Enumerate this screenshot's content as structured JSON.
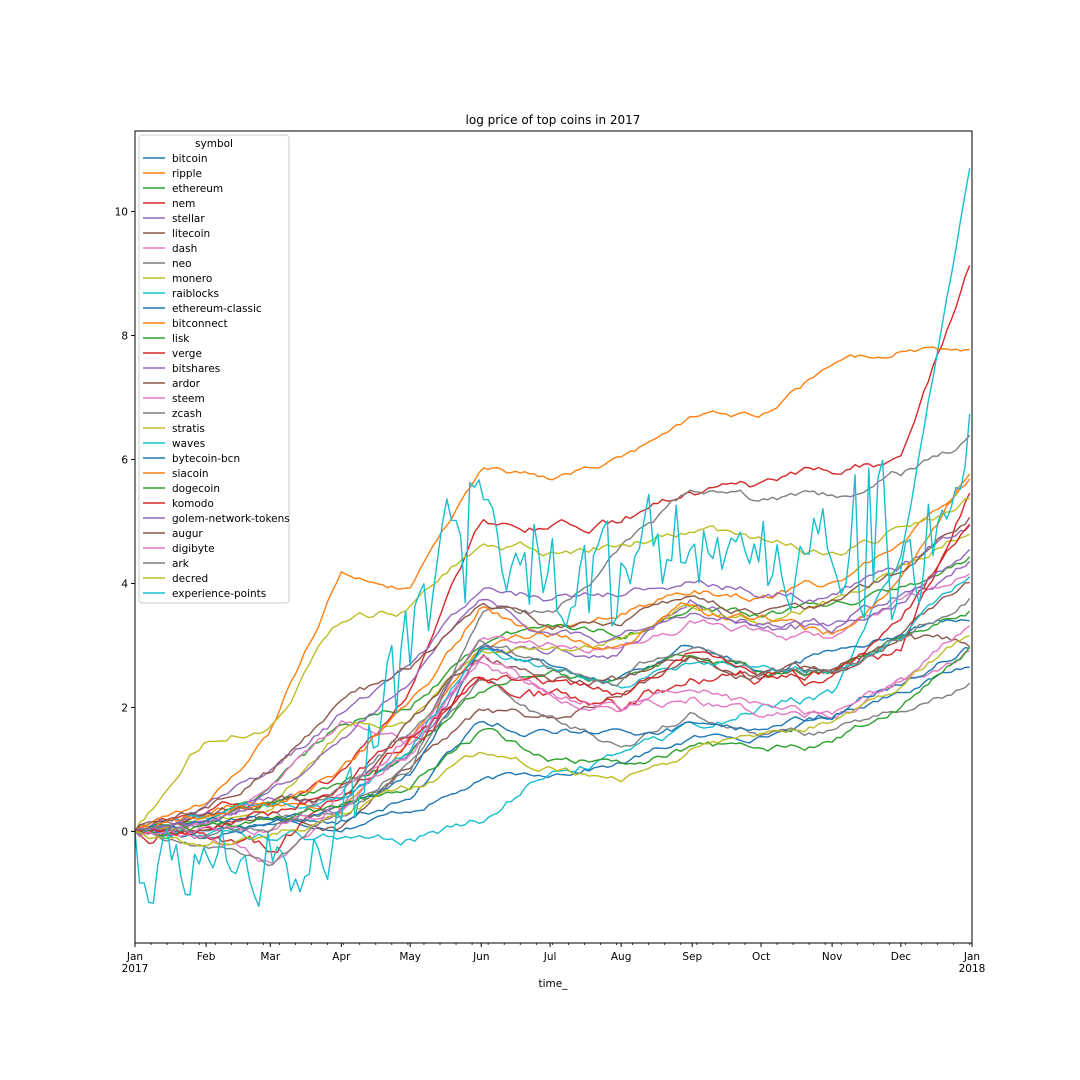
{
  "chart_data": {
    "type": "line",
    "title": "log price of top coins in 2017",
    "xlabel": "time_",
    "ylabel": "",
    "x_range": [
      "2017-01-01",
      "2018-01-01"
    ],
    "x_ticks": [
      {
        "date": "2017-01-01",
        "label": "Jan",
        "label2": "2017"
      },
      {
        "date": "2017-02-01",
        "label": "Feb"
      },
      {
        "date": "2017-03-01",
        "label": "Mar"
      },
      {
        "date": "2017-04-01",
        "label": "Apr"
      },
      {
        "date": "2017-05-01",
        "label": "May"
      },
      {
        "date": "2017-06-01",
        "label": "Jun"
      },
      {
        "date": "2017-07-01",
        "label": "Jul"
      },
      {
        "date": "2017-08-01",
        "label": "Aug"
      },
      {
        "date": "2017-09-01",
        "label": "Sep"
      },
      {
        "date": "2017-10-01",
        "label": "Oct"
      },
      {
        "date": "2017-11-01",
        "label": "Nov"
      },
      {
        "date": "2017-12-01",
        "label": "Dec"
      },
      {
        "date": "2018-01-01",
        "label": "Jan",
        "label2": "2018"
      }
    ],
    "ylim": [
      -1.8,
      11.3
    ],
    "y_ticks": [
      0,
      2,
      4,
      6,
      8,
      10
    ],
    "grid": false,
    "legend": {
      "title": "symbol",
      "placement": "upper-left"
    },
    "sample_dates": [
      "2017-01-01",
      "2017-02-01",
      "2017-03-01",
      "2017-04-01",
      "2017-05-01",
      "2017-06-01",
      "2017-07-01",
      "2017-08-01",
      "2017-09-01",
      "2017-10-01",
      "2017-11-01",
      "2017-12-01",
      "2018-01-01"
    ],
    "series": [
      {
        "name": "bitcoin",
        "color": "#1f77b4",
        "volatility": 0.04,
        "values": [
          0,
          0.05,
          0.15,
          0.1,
          0.35,
          0.8,
          0.95,
          1.1,
          1.5,
          1.55,
          1.85,
          2.3,
          2.7
        ]
      },
      {
        "name": "ripple",
        "color": "#ff7f0e",
        "volatility": 0.05,
        "values": [
          0,
          0.3,
          0.55,
          0.4,
          1.5,
          3.0,
          3.2,
          3.6,
          3.9,
          3.8,
          4.0,
          4.5,
          5.8
        ]
      },
      {
        "name": "ethereum",
        "color": "#2ca02c",
        "volatility": 0.05,
        "values": [
          0,
          0.15,
          0.7,
          1.8,
          2.0,
          3.1,
          3.3,
          3.25,
          3.6,
          3.5,
          3.6,
          3.9,
          4.4
        ]
      },
      {
        "name": "nem",
        "color": "#d62728",
        "volatility": 0.06,
        "values": [
          0,
          0.3,
          0.5,
          0.9,
          2.3,
          5.0,
          4.9,
          5.0,
          5.5,
          5.5,
          5.8,
          6.0,
          9.2
        ]
      },
      {
        "name": "stellar",
        "color": "#9467bd",
        "volatility": 0.07,
        "values": [
          0,
          0.3,
          0.6,
          0.4,
          1.3,
          2.9,
          2.9,
          3.0,
          3.8,
          3.3,
          3.3,
          3.9,
          4.4
        ]
      },
      {
        "name": "litecoin",
        "color": "#8c564b",
        "volatility": 0.05,
        "values": [
          0,
          0.05,
          0.2,
          0.1,
          1.0,
          1.9,
          1.8,
          2.2,
          2.9,
          2.5,
          2.5,
          3.2,
          4.0
        ]
      },
      {
        "name": "dash",
        "color": "#e377c2",
        "volatility": 0.05,
        "values": [
          0,
          0.1,
          0.7,
          1.8,
          1.4,
          3.1,
          3.0,
          3.0,
          3.4,
          3.2,
          3.1,
          3.7,
          4.2
        ]
      },
      {
        "name": "neo",
        "color": "#7f7f7f",
        "volatility": 0.06,
        "values": [
          0,
          0.1,
          0.2,
          0.2,
          1.0,
          3.6,
          3.5,
          4.5,
          5.5,
          5.3,
          5.3,
          5.7,
          6.3
        ]
      },
      {
        "name": "monero",
        "color": "#bcbd22",
        "volatility": 0.05,
        "values": [
          0,
          0.2,
          0.4,
          1.6,
          1.8,
          3.0,
          2.9,
          3.1,
          3.6,
          3.4,
          3.7,
          4.3,
          4.9
        ]
      },
      {
        "name": "raiblocks",
        "color": "#17becf",
        "volatility": 0.06,
        "values": [
          0,
          -0.1,
          -0.1,
          -0.1,
          -0.1,
          0.2,
          1.0,
          1.2,
          1.6,
          2.0,
          2.2,
          4.5,
          10.8
        ]
      },
      {
        "name": "ethereum-classic",
        "color": "#1f77b4",
        "volatility": 0.05,
        "values": [
          0,
          -0.1,
          0.1,
          0.3,
          0.9,
          2.9,
          2.6,
          2.5,
          3.0,
          2.6,
          2.9,
          3.2,
          3.5
        ]
      },
      {
        "name": "bitconnect",
        "color": "#ff7f0e",
        "volatility": 0.04,
        "values": [
          0,
          0.4,
          1.6,
          4.2,
          3.9,
          5.8,
          5.7,
          6.0,
          6.7,
          6.7,
          7.5,
          7.8,
          7.8
        ]
      },
      {
        "name": "lisk",
        "color": "#2ca02c",
        "volatility": 0.05,
        "values": [
          0,
          0.2,
          0.5,
          0.7,
          1.2,
          2.3,
          2.5,
          2.4,
          2.9,
          2.5,
          2.6,
          3.2,
          3.6
        ]
      },
      {
        "name": "verge",
        "color": "#d62728",
        "volatility": 0.09,
        "values": [
          0,
          -0.05,
          -0.25,
          0.5,
          1.4,
          2.4,
          2.2,
          2.1,
          2.5,
          2.5,
          2.4,
          3.0,
          5.7
        ]
      },
      {
        "name": "bitshares",
        "color": "#9467bd",
        "volatility": 0.06,
        "values": [
          0,
          0.4,
          1.0,
          1.9,
          2.6,
          4.0,
          3.8,
          3.9,
          4.1,
          3.9,
          3.8,
          4.2,
          5.0
        ]
      },
      {
        "name": "ardor",
        "color": "#8c564b",
        "volatility": 0.06,
        "values": [
          0,
          0.2,
          0.5,
          0.6,
          1.8,
          2.9,
          2.4,
          2.4,
          2.8,
          2.5,
          2.6,
          3.1,
          3.0
        ]
      },
      {
        "name": "steem",
        "color": "#e377c2",
        "volatility": 0.06,
        "values": [
          0,
          -0.1,
          -0.5,
          0.6,
          1.5,
          2.7,
          2.3,
          2.0,
          2.3,
          2.0,
          1.9,
          2.4,
          2.9
        ]
      },
      {
        "name": "zcash",
        "color": "#7f7f7f",
        "volatility": 0.05,
        "values": [
          0,
          -0.3,
          -0.5,
          0.4,
          1.2,
          2.4,
          1.8,
          1.4,
          1.9,
          1.5,
          1.6,
          1.9,
          2.4
        ]
      },
      {
        "name": "stratis",
        "color": "#bcbd22",
        "volatility": 0.06,
        "values": [
          0,
          1.5,
          1.8,
          3.4,
          3.6,
          4.6,
          4.5,
          4.6,
          4.9,
          4.6,
          4.5,
          4.9,
          5.4
        ]
      },
      {
        "name": "waves",
        "color": "#17becf",
        "volatility": 0.05,
        "values": [
          0,
          0.2,
          0.4,
          0.6,
          1.3,
          2.9,
          2.6,
          2.4,
          2.8,
          2.6,
          2.6,
          3.2,
          4.1
        ]
      },
      {
        "name": "bytecoin-bcn",
        "color": "#1f77b4",
        "volatility": 0.05,
        "values": [
          0,
          0.1,
          0.2,
          0.2,
          0.6,
          1.8,
          1.6,
          1.6,
          1.7,
          1.7,
          1.9,
          2.4,
          3.0
        ]
      },
      {
        "name": "siacoin",
        "color": "#ff7f0e",
        "volatility": 0.06,
        "values": [
          0,
          0.2,
          0.4,
          1.0,
          2.0,
          3.6,
          3.2,
          3.0,
          3.6,
          3.4,
          3.2,
          4.0,
          5.8
        ]
      },
      {
        "name": "dogecoin",
        "color": "#2ca02c",
        "volatility": 0.05,
        "values": [
          0,
          0.1,
          0.2,
          0.4,
          0.8,
          1.6,
          1.2,
          1.1,
          1.4,
          1.3,
          1.4,
          2.0,
          3.0
        ]
      },
      {
        "name": "komodo",
        "color": "#d62728",
        "volatility": 0.06,
        "values": [
          0,
          0.1,
          0.3,
          0.8,
          1.6,
          2.5,
          2.4,
          2.2,
          2.9,
          2.5,
          2.6,
          3.3,
          5.1
        ]
      },
      {
        "name": "golem-network-tokens",
        "color": "#9467bd",
        "volatility": 0.05,
        "values": [
          0,
          0.1,
          0.6,
          1.5,
          2.4,
          3.8,
          3.2,
          3.1,
          3.5,
          3.3,
          3.3,
          3.7,
          4.6
        ]
      },
      {
        "name": "augur",
        "color": "#8c564b",
        "volatility": 0.05,
        "values": [
          0,
          0.4,
          1.0,
          2.0,
          2.6,
          3.7,
          3.3,
          3.4,
          3.8,
          3.5,
          3.6,
          4.2,
          5.1
        ]
      },
      {
        "name": "digibyte",
        "color": "#e377c2",
        "volatility": 0.06,
        "values": [
          0,
          0.0,
          0.1,
          0.4,
          1.2,
          2.8,
          2.2,
          2.0,
          2.2,
          1.9,
          1.9,
          2.5,
          3.4
        ]
      },
      {
        "name": "ark",
        "color": "#7f7f7f",
        "volatility": 0.06,
        "values": [
          0,
          -0.1,
          0.1,
          0.6,
          1.6,
          3.0,
          2.6,
          2.5,
          3.0,
          2.6,
          2.6,
          3.2,
          3.9
        ]
      },
      {
        "name": "decred",
        "color": "#bcbd22",
        "volatility": 0.05,
        "values": [
          0,
          -0.2,
          -0.1,
          0.3,
          0.7,
          1.2,
          1.0,
          0.8,
          1.3,
          1.6,
          1.8,
          2.3,
          3.2
        ]
      },
      {
        "name": "experience-points",
        "color": "#17becf",
        "volatility": 0.6,
        "values": [
          0,
          -0.1,
          -0.1,
          -0.1,
          3.0,
          4.5,
          4.0,
          3.8,
          4.2,
          4.0,
          4.3,
          5.0,
          5.5
        ]
      }
    ]
  }
}
